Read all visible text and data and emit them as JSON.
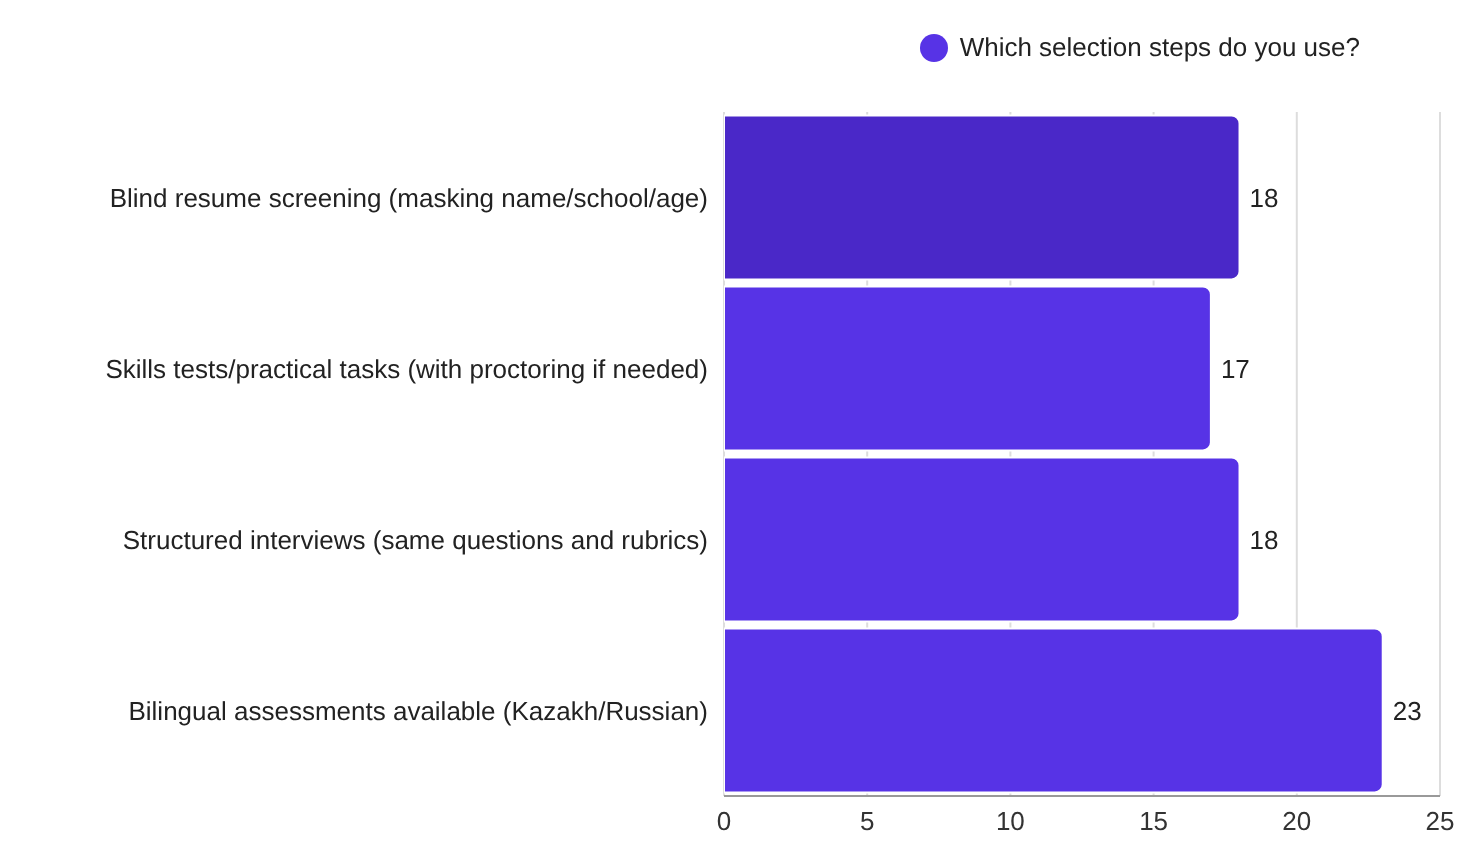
{
  "chart_data": {
    "type": "bar",
    "orientation": "horizontal",
    "categories": [
      "Blind resume screening (masking name/school/age)",
      "Skills tests/practical tasks (with proctoring if needed)",
      "Structured interviews (same questions and rubrics)",
      "Bilingual assessments available (Kazakh/Russian)"
    ],
    "series": [
      {
        "name": "Which selection steps do you use?",
        "color": "#5733e6",
        "colors": [
          "#4a28c8",
          "#5733e6",
          "#5733e6",
          "#5733e6"
        ],
        "values": [
          18,
          17,
          18,
          23
        ]
      }
    ],
    "xlim": [
      0,
      25
    ],
    "xticks": [
      0,
      5,
      10,
      15,
      20,
      25
    ],
    "grid": "x",
    "legend": "top right",
    "data_labels": true
  }
}
